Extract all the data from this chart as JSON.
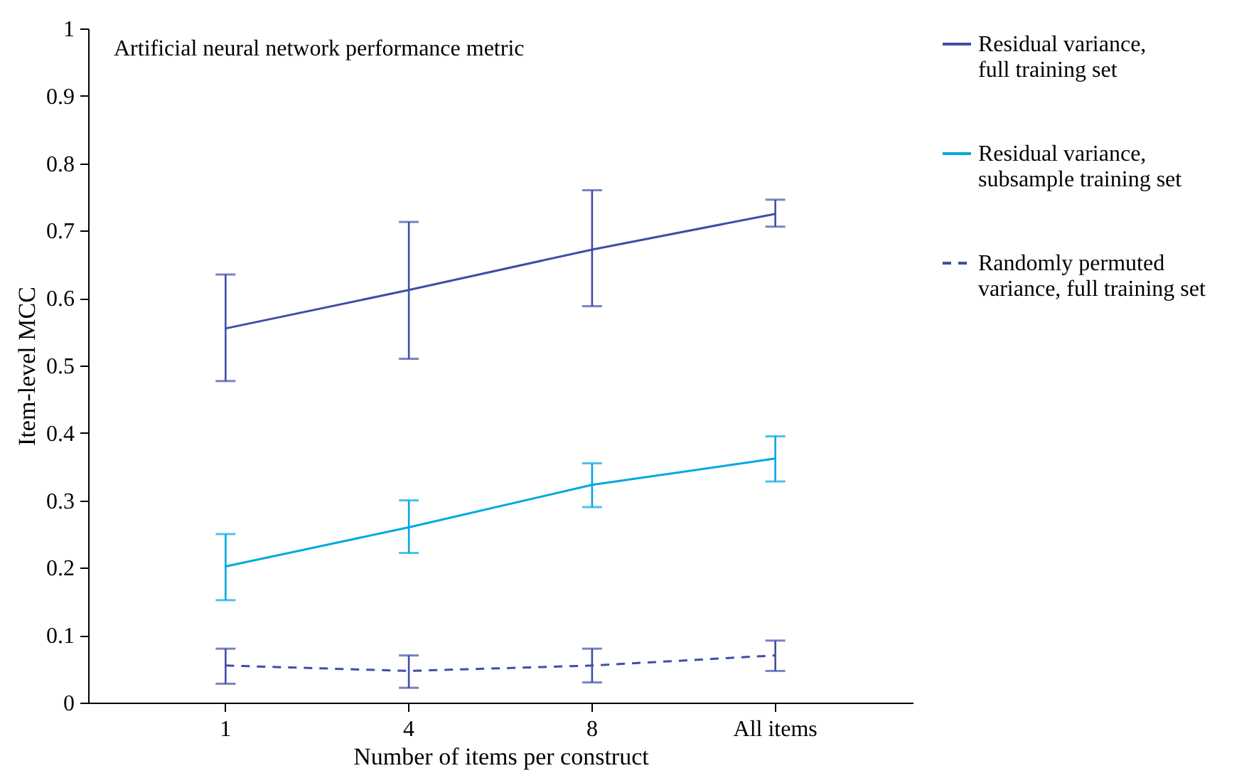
{
  "chart_data": {
    "type": "line",
    "title": "Artificial neural network performance metric",
    "xlabel": "Number of items per construct",
    "ylabel": "Item-level MCC",
    "categories": [
      "1",
      "4",
      "8",
      "All items"
    ],
    "ylim": [
      0,
      1
    ],
    "yticks": [
      0,
      0.1,
      0.2,
      0.3,
      0.4,
      0.5,
      0.6,
      0.7,
      0.8,
      0.9,
      1
    ],
    "grid": false,
    "legend": "right",
    "marker": "none",
    "series": [
      {
        "name": "Residual variance, full training set",
        "color": "#3f4ea6",
        "line_style": "solid",
        "values": [
          0.555,
          0.612,
          0.672,
          0.725
        ],
        "errors": [
          [
            0.477,
            0.635
          ],
          [
            0.51,
            0.713
          ],
          [
            0.588,
            0.76
          ],
          [
            0.706,
            0.746
          ]
        ]
      },
      {
        "name": "Residual variance, subsample training set",
        "color": "#00a8e0",
        "line_style": "solid",
        "values": [
          0.202,
          0.26,
          0.323,
          0.362
        ],
        "errors": [
          [
            0.152,
            0.25
          ],
          [
            0.222,
            0.3
          ],
          [
            0.29,
            0.355
          ],
          [
            0.328,
            0.395
          ]
        ]
      },
      {
        "name": "Randomly permuted variance, full training set",
        "color": "#3f4ea6",
        "line_style": "dashed",
        "values": [
          0.055,
          0.047,
          0.055,
          0.07
        ],
        "errors": [
          [
            0.028,
            0.08
          ],
          [
            0.022,
            0.07
          ],
          [
            0.03,
            0.08
          ],
          [
            0.047,
            0.092
          ]
        ]
      }
    ]
  }
}
